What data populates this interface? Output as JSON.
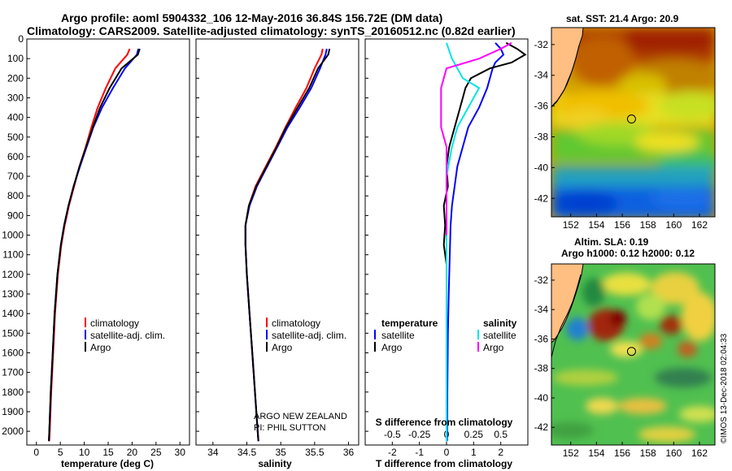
{
  "header": {
    "title_line1": "Argo profile: aoml 5904332_106 12-May-2016 36.84S 156.72E (DM data)",
    "title_line2": "Climatology: CARS2009. Satellite-adjusted climatology: synTS_20160512.nc (0.82d earlier)"
  },
  "colors": {
    "climatology": "#ff0000",
    "satellite": "#0000ff",
    "argo": "#000000",
    "s_satellite": "#00e5e5",
    "s_argo": "#ff00ff"
  },
  "chart_data": [
    {
      "type": "line",
      "name": "temperature",
      "xlabel": "temperature (deg C)",
      "ylabel": "",
      "xlim": [
        -2,
        32
      ],
      "ylim": [
        2070,
        0
      ],
      "xticks": [
        0,
        5,
        10,
        15,
        20,
        25,
        30
      ],
      "yticks": [
        0,
        100,
        200,
        300,
        400,
        500,
        600,
        700,
        800,
        900,
        1000,
        1100,
        1200,
        1300,
        1400,
        1500,
        1600,
        1700,
        1800,
        1900,
        2000
      ],
      "legend": [
        "climatology",
        "satellite-adj. clim.",
        "Argo"
      ],
      "series": [
        {
          "name": "climatology",
          "color": "#ff0000",
          "points": [
            [
              19.5,
              50
            ],
            [
              19.0,
              80
            ],
            [
              16.5,
              150
            ],
            [
              14.5,
              250
            ],
            [
              12.8,
              350
            ],
            [
              11.5,
              450
            ],
            [
              10.3,
              550
            ],
            [
              9.0,
              650
            ],
            [
              7.9,
              750
            ],
            [
              6.8,
              850
            ],
            [
              5.9,
              950
            ],
            [
              5.2,
              1050
            ],
            [
              4.5,
              1200
            ],
            [
              3.9,
              1400
            ],
            [
              3.5,
              1600
            ],
            [
              3.1,
              1800
            ],
            [
              2.8,
              2000
            ],
            [
              2.7,
              2050
            ]
          ]
        },
        {
          "name": "satellite-adj. clim.",
          "color": "#0000ff",
          "points": [
            [
              21.3,
              50
            ],
            [
              21.0,
              80
            ],
            [
              18.5,
              150
            ],
            [
              16.0,
              250
            ],
            [
              13.7,
              350
            ],
            [
              11.9,
              450
            ],
            [
              10.5,
              550
            ],
            [
              9.1,
              650
            ],
            [
              7.8,
              750
            ],
            [
              6.7,
              850
            ],
            [
              5.8,
              950
            ],
            [
              5.1,
              1050
            ],
            [
              4.4,
              1200
            ],
            [
              3.8,
              1400
            ],
            [
              3.4,
              1600
            ],
            [
              3.0,
              1800
            ],
            [
              2.7,
              2000
            ],
            [
              2.6,
              2050
            ]
          ]
        },
        {
          "name": "Argo",
          "color": "#000000",
          "points": [
            [
              21.6,
              50
            ],
            [
              21.2,
              80
            ],
            [
              17.8,
              150
            ],
            [
              15.3,
              250
            ],
            [
              13.3,
              350
            ],
            [
              11.8,
              450
            ],
            [
              10.4,
              550
            ],
            [
              9.0,
              650
            ],
            [
              7.8,
              750
            ],
            [
              6.7,
              850
            ],
            [
              5.8,
              950
            ],
            [
              5.1,
              1050
            ],
            [
              4.4,
              1200
            ],
            [
              3.8,
              1400
            ],
            [
              3.4,
              1600
            ],
            [
              3.0,
              1800
            ],
            [
              2.7,
              2000
            ],
            [
              2.6,
              2050
            ]
          ]
        }
      ]
    },
    {
      "type": "line",
      "name": "salinity",
      "xlabel": "salinity",
      "xlim": [
        33.75,
        36.15
      ],
      "ylim": [
        2070,
        0
      ],
      "xticks": [
        34,
        34.5,
        35,
        35.5,
        36
      ],
      "legend": [
        "climatology",
        "satellite-adj. clim.",
        "Argo"
      ],
      "annotation": [
        "ARGO NEW ZEALAND",
        "PI: PHIL SUTTON"
      ],
      "series": [
        {
          "name": "climatology",
          "color": "#ff0000",
          "points": [
            [
              35.62,
              50
            ],
            [
              35.6,
              80
            ],
            [
              35.5,
              150
            ],
            [
              35.38,
              250
            ],
            [
              35.22,
              350
            ],
            [
              35.07,
              450
            ],
            [
              34.93,
              550
            ],
            [
              34.78,
              650
            ],
            [
              34.63,
              750
            ],
            [
              34.53,
              850
            ],
            [
              34.48,
              950
            ],
            [
              34.48,
              1050
            ],
            [
              34.5,
              1200
            ],
            [
              34.54,
              1400
            ],
            [
              34.58,
              1600
            ],
            [
              34.62,
              1800
            ],
            [
              34.66,
              2000
            ],
            [
              34.67,
              2050
            ]
          ]
        },
        {
          "name": "satellite-adj. clim.",
          "color": "#0000ff",
          "points": [
            [
              35.68,
              50
            ],
            [
              35.66,
              80
            ],
            [
              35.58,
              150
            ],
            [
              35.45,
              250
            ],
            [
              35.28,
              350
            ],
            [
              35.1,
              450
            ],
            [
              34.95,
              550
            ],
            [
              34.8,
              650
            ],
            [
              34.65,
              750
            ],
            [
              34.54,
              850
            ],
            [
              34.48,
              950
            ],
            [
              34.48,
              1050
            ],
            [
              34.5,
              1200
            ],
            [
              34.54,
              1400
            ],
            [
              34.58,
              1600
            ],
            [
              34.62,
              1800
            ],
            [
              34.66,
              2000
            ],
            [
              34.67,
              2050
            ]
          ]
        },
        {
          "name": "Argo",
          "color": "#000000",
          "points": [
            [
              35.72,
              50
            ],
            [
              35.7,
              80
            ],
            [
              35.55,
              150
            ],
            [
              35.42,
              250
            ],
            [
              35.25,
              350
            ],
            [
              35.08,
              450
            ],
            [
              34.94,
              550
            ],
            [
              34.79,
              650
            ],
            [
              34.64,
              750
            ],
            [
              34.53,
              850
            ],
            [
              34.48,
              950
            ],
            [
              34.48,
              1050
            ],
            [
              34.5,
              1200
            ],
            [
              34.54,
              1400
            ],
            [
              34.58,
              1600
            ],
            [
              34.62,
              1800
            ],
            [
              34.66,
              2000
            ],
            [
              34.67,
              2050
            ]
          ]
        }
      ]
    },
    {
      "type": "line",
      "name": "differences",
      "xlabel": "T difference from climatology",
      "xlabel_top": "S difference from climatology",
      "xlim": [
        -3,
        3
      ],
      "ylim": [
        2070,
        0
      ],
      "xticks": [
        -2,
        -1,
        0,
        1,
        2
      ],
      "xticks_s": [
        -0.5,
        -0.25,
        0,
        0.25,
        0.5
      ],
      "xtick_s_labels": [
        "-0.5",
        "-0.25",
        "0",
        "0.25",
        "0.5"
      ],
      "legend_left_title": "temperature",
      "legend_right_title": "salinity",
      "legend_left": [
        "satellite",
        "Argo"
      ],
      "legend_right": [
        "satellite",
        "Argo"
      ],
      "series": [
        {
          "name": "T satellite",
          "color": "#0000ff",
          "points": [
            [
              1.8,
              20
            ],
            [
              2.0,
              50
            ],
            [
              2.1,
              80
            ],
            [
              1.8,
              120
            ],
            [
              1.7,
              150
            ],
            [
              1.5,
              250
            ],
            [
              1.2,
              350
            ],
            [
              0.8,
              450
            ],
            [
              0.6,
              550
            ],
            [
              0.4,
              650
            ],
            [
              0.3,
              750
            ],
            [
              0.2,
              850
            ],
            [
              0.15,
              950
            ],
            [
              0.12,
              1100
            ],
            [
              0.08,
              1300
            ],
            [
              0.05,
              1500
            ],
            [
              0.03,
              1800
            ],
            [
              0.02,
              2050
            ]
          ]
        },
        {
          "name": "T Argo",
          "color": "#000000",
          "points": [
            [
              2.2,
              20
            ],
            [
              2.6,
              50
            ],
            [
              2.9,
              80
            ],
            [
              2.4,
              120
            ],
            [
              1.6,
              150
            ],
            [
              0.9,
              200
            ],
            [
              0.7,
              250
            ],
            [
              0.5,
              350
            ],
            [
              0.3,
              450
            ],
            [
              0.1,
              550
            ],
            [
              0.0,
              650
            ],
            [
              0.05,
              750
            ],
            [
              -0.1,
              850
            ],
            [
              -0.05,
              950
            ],
            [
              -0.1,
              1050
            ],
            [
              0.0,
              1150
            ],
            [
              0.0,
              1300
            ],
            [
              0.0,
              1500
            ],
            [
              0.0,
              1800
            ],
            [
              0.0,
              2050
            ]
          ]
        },
        {
          "name": "S satellite",
          "color": "#00e5e5",
          "points": [
            [
              0.0,
              20
            ],
            [
              0.05,
              100
            ],
            [
              0.15,
              200
            ],
            [
              0.3,
              250
            ],
            [
              0.2,
              350
            ],
            [
              0.1,
              450
            ],
            [
              0.05,
              550
            ],
            [
              0.0,
              700
            ],
            [
              0.0,
              1000
            ],
            [
              0.0,
              1300
            ],
            [
              0.0,
              1600
            ],
            [
              0.0,
              2050
            ]
          ]
        },
        {
          "name": "S Argo",
          "color": "#ff00ff",
          "points": [
            [
              0.6,
              20
            ],
            [
              0.5,
              50
            ],
            [
              0.3,
              100
            ],
            [
              0.0,
              150
            ],
            [
              -0.05,
              250
            ],
            [
              -0.05,
              350
            ],
            [
              -0.05,
              450
            ],
            [
              0.0,
              550
            ],
            [
              0.0,
              700
            ],
            [
              0.0,
              900
            ],
            [
              0.0,
              1000
            ]
          ]
        }
      ]
    }
  ],
  "sst_map": {
    "title": "sat. SST: 21.4 Argo: 20.9",
    "xticks": [
      152,
      154,
      156,
      158,
      160,
      162
    ],
    "yticks": [
      -32,
      -34,
      -36,
      -38,
      -40,
      -42
    ],
    "lon_range": [
      150.5,
      163.2
    ],
    "lat_range": [
      -30.9,
      -43.2
    ],
    "marker": {
      "lon": 156.72,
      "lat": -36.84
    }
  },
  "sla_map": {
    "title_line1": "Altim. SLA: 0.19",
    "title_line2": "Argo h1000: 0.12 h2000: 0.12",
    "xticks": [
      152,
      154,
      156,
      158,
      160,
      162
    ],
    "yticks": [
      -32,
      -34,
      -36,
      -38,
      -40,
      -42
    ],
    "lon_range": [
      150.5,
      163.2
    ],
    "lat_range": [
      -30.9,
      -43.2
    ],
    "marker": {
      "lon": 156.72,
      "lat": -36.84
    }
  },
  "footer": {
    "credit": "©IMOS 13-Dec-2018 02:04:33"
  }
}
